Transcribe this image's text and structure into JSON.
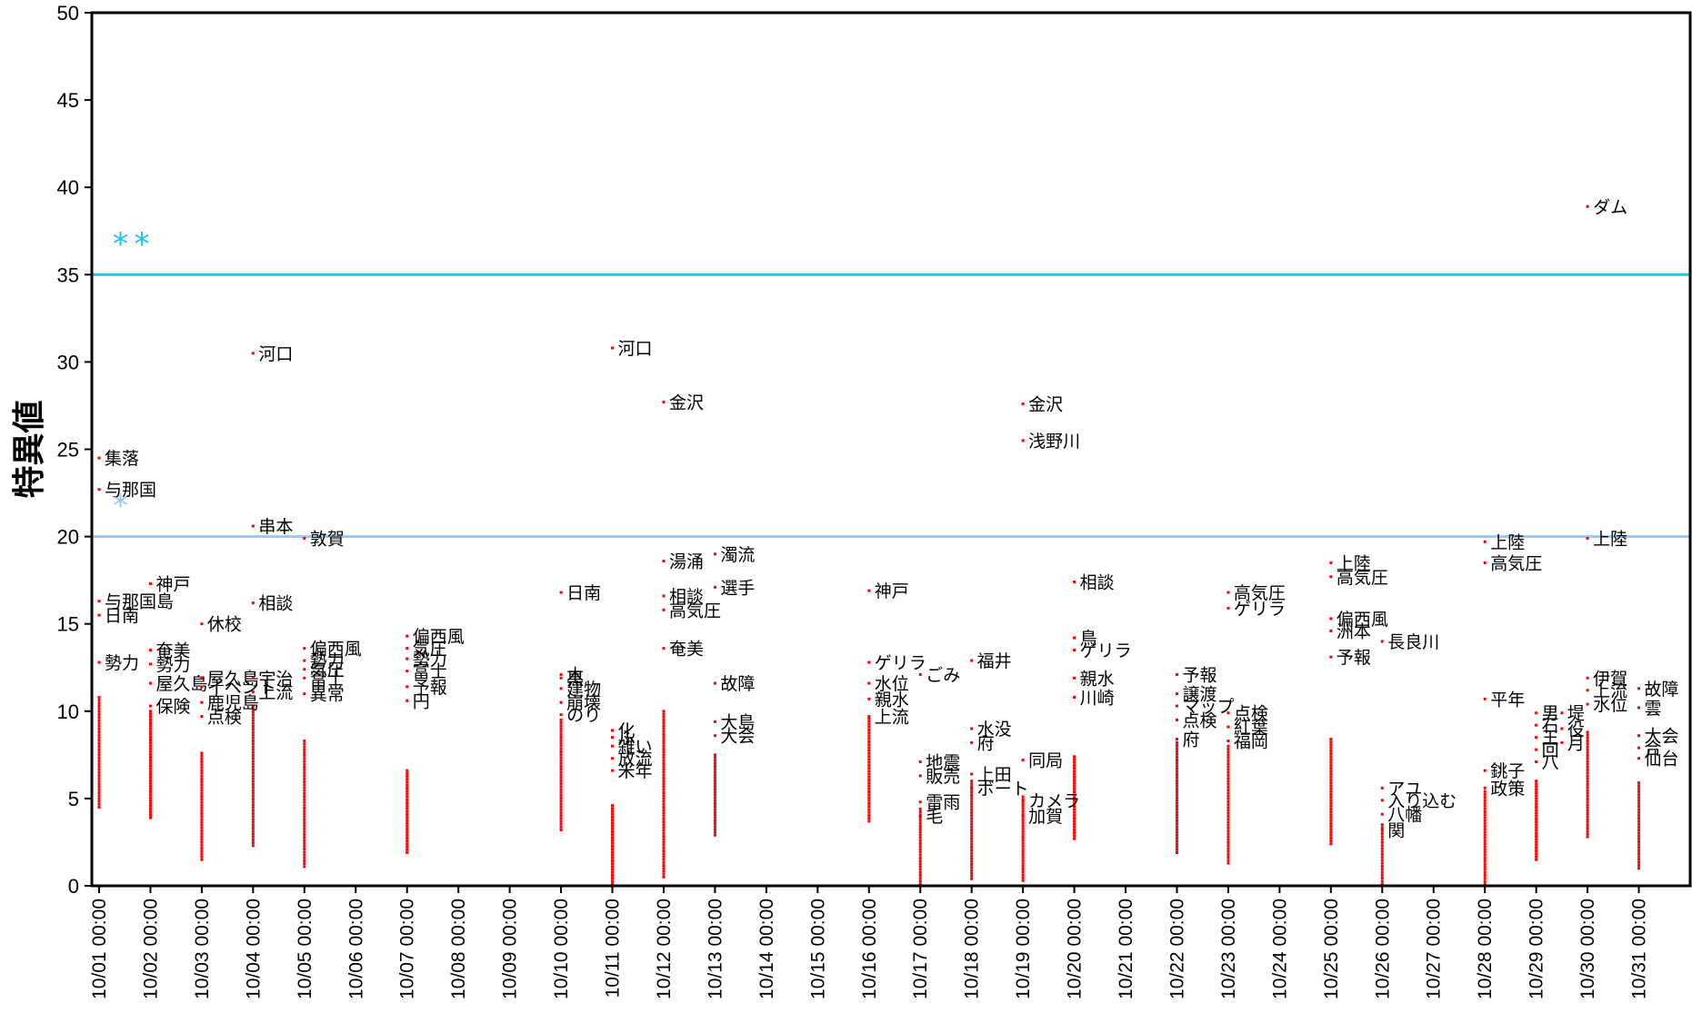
{
  "chart_data": {
    "type": "scatter",
    "title": "",
    "xlabel": "",
    "ylabel": "特異値",
    "ylim": [
      0,
      50
    ],
    "yticks": [
      0,
      5,
      10,
      15,
      20,
      25,
      30,
      35,
      40,
      45,
      50
    ],
    "xlim": [
      "10/01 00:00",
      "11/01 00:00"
    ],
    "x_tick_labels": [
      "10/01 00:00",
      "10/02 00:00",
      "10/03 00:00",
      "10/04 00:00",
      "10/05 00:00",
      "10/06 00:00",
      "10/07 00:00",
      "10/08 00:00",
      "10/09 00:00",
      "10/10 00:00",
      "10/11 00:00",
      "10/12 00:00",
      "10/13 00:00",
      "10/14 00:00",
      "10/15 00:00",
      "10/16 00:00",
      "10/17 00:00",
      "10/18 00:00",
      "10/19 00:00",
      "10/20 00:00",
      "10/21 00:00",
      "10/22 00:00",
      "10/23 00:00",
      "10/24 00:00",
      "10/25 00:00",
      "10/26 00:00",
      "10/27 00:00",
      "10/28 00:00",
      "10/29 00:00",
      "10/30 00:00",
      "10/31 00:00"
    ],
    "grid": false,
    "colors": {
      "points": "#ff0000",
      "threshold_high": "#1ec0ee",
      "threshold_low": "#9ec6f0",
      "stars": "#1ec0ee",
      "star_light": "#9ec6f0"
    },
    "thresholds": [
      {
        "y": 35,
        "color": "#1ec0ee"
      },
      {
        "y": 20,
        "color": "#9ec6f0"
      }
    ],
    "star_markers": [
      {
        "x": "10/01 10:00",
        "y": 37.0,
        "text": "*",
        "color": "#1ec0ee"
      },
      {
        "x": "10/01 20:00",
        "y": 37.0,
        "text": "*",
        "color": "#1ec0ee"
      },
      {
        "x": "10/01 10:00",
        "y": 22.0,
        "text": "*",
        "color": "#9ec6f0"
      }
    ],
    "labeled_points": [
      {
        "x": "10/01 00:00",
        "y": 24.5,
        "label": "集落"
      },
      {
        "x": "10/01 00:00",
        "y": 22.7,
        "label": "与那国"
      },
      {
        "x": "10/01 00:00",
        "y": 16.3,
        "label": "与那国島"
      },
      {
        "x": "10/01 00:00",
        "y": 15.5,
        "label": "日南"
      },
      {
        "x": "10/01 00:00",
        "y": 12.8,
        "label": "勢力"
      },
      {
        "x": "10/02 00:00",
        "y": 17.3,
        "label": "神戸"
      },
      {
        "x": "10/02 00:00",
        "y": 13.5,
        "label": "奄美"
      },
      {
        "x": "10/02 00:00",
        "y": 12.7,
        "label": "勢力"
      },
      {
        "x": "10/02 00:00",
        "y": 11.6,
        "label": "屋久島"
      },
      {
        "x": "10/02 00:00",
        "y": 10.3,
        "label": "保険"
      },
      {
        "x": "10/03 00:00",
        "y": 15.0,
        "label": "休校"
      },
      {
        "x": "10/03 00:00",
        "y": 11.9,
        "label": "屋久島"
      },
      {
        "x": "10/03 00:00",
        "y": 11.4,
        "label": "イベント"
      },
      {
        "x": "10/03 00:00",
        "y": 10.5,
        "label": "鹿児島"
      },
      {
        "x": "10/03 00:00",
        "y": 9.7,
        "label": "点検"
      },
      {
        "x": "10/04 00:00",
        "y": 30.5,
        "label": "河口"
      },
      {
        "x": "10/04 00:00",
        "y": 20.6,
        "label": "串本"
      },
      {
        "x": "10/04 00:00",
        "y": 16.2,
        "label": "相談"
      },
      {
        "x": "10/04 00:00",
        "y": 11.9,
        "label": "宇治"
      },
      {
        "x": "10/04 00:00",
        "y": 11.1,
        "label": "上流"
      },
      {
        "x": "10/05 00:00",
        "y": 19.9,
        "label": "敦賀"
      },
      {
        "x": "10/05 00:00",
        "y": 13.6,
        "label": "偏西風"
      },
      {
        "x": "10/05 00:00",
        "y": 12.9,
        "label": "勢力"
      },
      {
        "x": "10/05 00:00",
        "y": 12.4,
        "label": "気圧"
      },
      {
        "x": "10/05 00:00",
        "y": 11.9,
        "label": "富士"
      },
      {
        "x": "10/05 00:00",
        "y": 11.0,
        "label": "異常"
      },
      {
        "x": "10/07 00:00",
        "y": 14.3,
        "label": "偏西風"
      },
      {
        "x": "10/07 00:00",
        "y": 13.6,
        "label": "気圧"
      },
      {
        "x": "10/07 00:00",
        "y": 13.0,
        "label": "勢力"
      },
      {
        "x": "10/07 00:00",
        "y": 12.3,
        "label": "富士"
      },
      {
        "x": "10/07 00:00",
        "y": 11.4,
        "label": "予報"
      },
      {
        "x": "10/07 00:00",
        "y": 10.6,
        "label": "円"
      },
      {
        "x": "10/10 00:00",
        "y": 16.8,
        "label": "日南"
      },
      {
        "x": "10/10 00:00",
        "y": 12.1,
        "label": "木"
      },
      {
        "x": "10/10 00:00",
        "y": 11.9,
        "label": "黒"
      },
      {
        "x": "10/10 00:00",
        "y": 11.3,
        "label": "建物"
      },
      {
        "x": "10/10 00:00",
        "y": 10.5,
        "label": "崩壊"
      },
      {
        "x": "10/10 00:00",
        "y": 9.8,
        "label": "のり"
      },
      {
        "x": "10/11 00:00",
        "y": 30.8,
        "label": "河口"
      },
      {
        "x": "10/11 00:00",
        "y": 8.9,
        "label": "化"
      },
      {
        "x": "10/11 00:00",
        "y": 8.5,
        "label": "ふ"
      },
      {
        "x": "10/11 00:00",
        "y": 8.0,
        "label": "雑い"
      },
      {
        "x": "10/11 00:00",
        "y": 7.3,
        "label": "放流"
      },
      {
        "x": "10/11 00:00",
        "y": 6.6,
        "label": "米年"
      },
      {
        "x": "10/12 00:00",
        "y": 27.7,
        "label": "金沢"
      },
      {
        "x": "10/12 00:00",
        "y": 18.6,
        "label": "湯涌"
      },
      {
        "x": "10/12 00:00",
        "y": 16.6,
        "label": "相談"
      },
      {
        "x": "10/12 00:00",
        "y": 15.8,
        "label": "高気圧"
      },
      {
        "x": "10/12 00:00",
        "y": 13.6,
        "label": "奄美"
      },
      {
        "x": "10/13 00:00",
        "y": 19.0,
        "label": "濁流"
      },
      {
        "x": "10/13 00:00",
        "y": 17.1,
        "label": "選手"
      },
      {
        "x": "10/13 00:00",
        "y": 11.6,
        "label": "故障"
      },
      {
        "x": "10/13 00:00",
        "y": 9.4,
        "label": "大島"
      },
      {
        "x": "10/13 00:00",
        "y": 8.6,
        "label": "大会"
      },
      {
        "x": "10/16 00:00",
        "y": 16.9,
        "label": "神戸"
      },
      {
        "x": "10/16 00:00",
        "y": 12.8,
        "label": "ゲリラ"
      },
      {
        "x": "10/16 00:00",
        "y": 11.6,
        "label": "水位"
      },
      {
        "x": "10/16 00:00",
        "y": 10.7,
        "label": "親水"
      },
      {
        "x": "10/16 00:00",
        "y": 9.7,
        "label": "上流"
      },
      {
        "x": "10/17 00:00",
        "y": 12.1,
        "label": "ごみ"
      },
      {
        "x": "10/17 00:00",
        "y": 7.1,
        "label": "地震"
      },
      {
        "x": "10/17 00:00",
        "y": 6.3,
        "label": "販売"
      },
      {
        "x": "10/17 00:00",
        "y": 4.8,
        "label": "雷雨"
      },
      {
        "x": "10/17 00:00",
        "y": 4.0,
        "label": "毛"
      },
      {
        "x": "10/18 00:00",
        "y": 12.9,
        "label": "福井"
      },
      {
        "x": "10/18 00:00",
        "y": 9.0,
        "label": "水没"
      },
      {
        "x": "10/18 00:00",
        "y": 8.2,
        "label": "府"
      },
      {
        "x": "10/18 00:00",
        "y": 6.4,
        "label": "上田"
      },
      {
        "x": "10/18 00:00",
        "y": 5.6,
        "label": "ボート"
      },
      {
        "x": "10/19 00:00",
        "y": 27.6,
        "label": "金沢"
      },
      {
        "x": "10/19 00:00",
        "y": 25.5,
        "label": "浅野川"
      },
      {
        "x": "10/19 00:00",
        "y": 7.2,
        "label": "同局"
      },
      {
        "x": "10/19 00:00",
        "y": 4.9,
        "label": "カメラ"
      },
      {
        "x": "10/19 00:00",
        "y": 4.0,
        "label": "加賀"
      },
      {
        "x": "10/20 00:00",
        "y": 17.4,
        "label": "相談"
      },
      {
        "x": "10/20 00:00",
        "y": 14.2,
        "label": "鳥"
      },
      {
        "x": "10/20 00:00",
        "y": 13.5,
        "label": "ゲリラ"
      },
      {
        "x": "10/20 00:00",
        "y": 11.9,
        "label": "親水"
      },
      {
        "x": "10/20 00:00",
        "y": 10.8,
        "label": "川崎"
      },
      {
        "x": "10/22 00:00",
        "y": 12.1,
        "label": "予報"
      },
      {
        "x": "10/22 00:00",
        "y": 11.0,
        "label": "譲渡"
      },
      {
        "x": "10/22 00:00",
        "y": 10.3,
        "label": "マップ"
      },
      {
        "x": "10/22 00:00",
        "y": 9.5,
        "label": "点検"
      },
      {
        "x": "10/22 00:00",
        "y": 8.4,
        "label": "府"
      },
      {
        "x": "10/23 00:00",
        "y": 16.8,
        "label": "高気圧"
      },
      {
        "x": "10/23 00:00",
        "y": 15.9,
        "label": "ゲリラ"
      },
      {
        "x": "10/23 00:00",
        "y": 9.9,
        "label": "点検"
      },
      {
        "x": "10/23 00:00",
        "y": 9.1,
        "label": "紅葉"
      },
      {
        "x": "10/23 00:00",
        "y": 8.3,
        "label": "福岡"
      },
      {
        "x": "10/25 00:00",
        "y": 18.5,
        "label": "上陸"
      },
      {
        "x": "10/25 00:00",
        "y": 17.7,
        "label": "高気圧"
      },
      {
        "x": "10/25 00:00",
        "y": 15.3,
        "label": "偏西風"
      },
      {
        "x": "10/25 00:00",
        "y": 14.6,
        "label": "洲本"
      },
      {
        "x": "10/25 00:00",
        "y": 13.1,
        "label": "予報"
      },
      {
        "x": "10/26 00:00",
        "y": 14.0,
        "label": "長良川"
      },
      {
        "x": "10/26 00:00",
        "y": 5.6,
        "label": "アユ"
      },
      {
        "x": "10/26 00:00",
        "y": 4.9,
        "label": "入り込む"
      },
      {
        "x": "10/26 00:00",
        "y": 4.1,
        "label": "八幡"
      },
      {
        "x": "10/26 00:00",
        "y": 3.2,
        "label": "関"
      },
      {
        "x": "10/28 00:00",
        "y": 19.7,
        "label": "上陸"
      },
      {
        "x": "10/28 00:00",
        "y": 18.5,
        "label": "高気圧"
      },
      {
        "x": "10/28 00:00",
        "y": 10.7,
        "label": "平年"
      },
      {
        "x": "10/28 00:00",
        "y": 6.6,
        "label": "銚子"
      },
      {
        "x": "10/28 00:00",
        "y": 5.6,
        "label": "政策"
      },
      {
        "x": "10/29 00:00",
        "y": 9.9,
        "label": "男"
      },
      {
        "x": "10/29 00:00",
        "y": 9.2,
        "label": "石"
      },
      {
        "x": "10/29 00:00",
        "y": 8.5,
        "label": "王"
      },
      {
        "x": "10/29 00:00",
        "y": 7.8,
        "label": "回"
      },
      {
        "x": "10/29 00:00",
        "y": 7.1,
        "label": "八"
      },
      {
        "x": "10/29 12:00",
        "y": 9.9,
        "label": "堤"
      },
      {
        "x": "10/29 12:00",
        "y": 9.0,
        "label": "役"
      },
      {
        "x": "10/29 12:00",
        "y": 8.2,
        "label": "月"
      },
      {
        "x": "10/30 00:00",
        "y": 38.9,
        "label": "ダム"
      },
      {
        "x": "10/30 00:00",
        "y": 19.9,
        "label": "上陸"
      },
      {
        "x": "10/30 00:00",
        "y": 11.9,
        "label": "伊賀"
      },
      {
        "x": "10/30 00:00",
        "y": 11.2,
        "label": "上流"
      },
      {
        "x": "10/30 00:00",
        "y": 10.4,
        "label": "水位"
      },
      {
        "x": "10/31 00:00",
        "y": 11.3,
        "label": "故障"
      },
      {
        "x": "10/31 00:00",
        "y": 10.2,
        "label": "雲"
      },
      {
        "x": "10/31 00:00",
        "y": 8.6,
        "label": "大会"
      },
      {
        "x": "10/31 00:00",
        "y": 7.9,
        "label": "合"
      },
      {
        "x": "10/31 00:00",
        "y": 7.3,
        "label": "仙台"
      }
    ],
    "point_clusters": [
      {
        "x": "10/01 00:00",
        "y_min": 4.5,
        "y_max": 10.8
      },
      {
        "x": "10/02 00:00",
        "y_min": 3.9,
        "y_max": 10.0
      },
      {
        "x": "10/03 00:00",
        "y_min": 1.5,
        "y_max": 7.6
      },
      {
        "x": "10/04 00:00",
        "y_min": 2.3,
        "y_max": 10.3
      },
      {
        "x": "10/05 00:00",
        "y_min": 1.1,
        "y_max": 8.3
      },
      {
        "x": "10/07 00:00",
        "y_min": 1.9,
        "y_max": 6.6
      },
      {
        "x": "10/10 00:00",
        "y_min": 3.2,
        "y_max": 9.5
      },
      {
        "x": "10/11 00:00",
        "y_min": 0.1,
        "y_max": 4.6
      },
      {
        "x": "10/12 00:00",
        "y_min": 0.5,
        "y_max": 10.0
      },
      {
        "x": "10/13 00:00",
        "y_min": 2.9,
        "y_max": 7.5
      },
      {
        "x": "10/16 00:00",
        "y_min": 3.7,
        "y_max": 9.6
      },
      {
        "x": "10/17 00:00",
        "y_min": 0.1,
        "y_max": 4.4
      },
      {
        "x": "10/18 00:00",
        "y_min": 0.4,
        "y_max": 6.0
      },
      {
        "x": "10/19 00:00",
        "y_min": 0.3,
        "y_max": 5.1
      },
      {
        "x": "10/20 00:00",
        "y_min": 2.7,
        "y_max": 7.4
      },
      {
        "x": "10/22 00:00",
        "y_min": 1.9,
        "y_max": 8.2
      },
      {
        "x": "10/23 00:00",
        "y_min": 1.3,
        "y_max": 8.0
      },
      {
        "x": "10/25 00:00",
        "y_min": 2.4,
        "y_max": 8.4
      },
      {
        "x": "10/26 00:00",
        "y_min": 0.1,
        "y_max": 3.5
      },
      {
        "x": "10/28 00:00",
        "y_min": 0.1,
        "y_max": 5.4
      },
      {
        "x": "10/29 00:00",
        "y_min": 1.5,
        "y_max": 6.0
      },
      {
        "x": "10/30 00:00",
        "y_min": 2.8,
        "y_max": 8.8
      },
      {
        "x": "10/31 00:00",
        "y_min": 1.0,
        "y_max": 5.9
      }
    ]
  }
}
